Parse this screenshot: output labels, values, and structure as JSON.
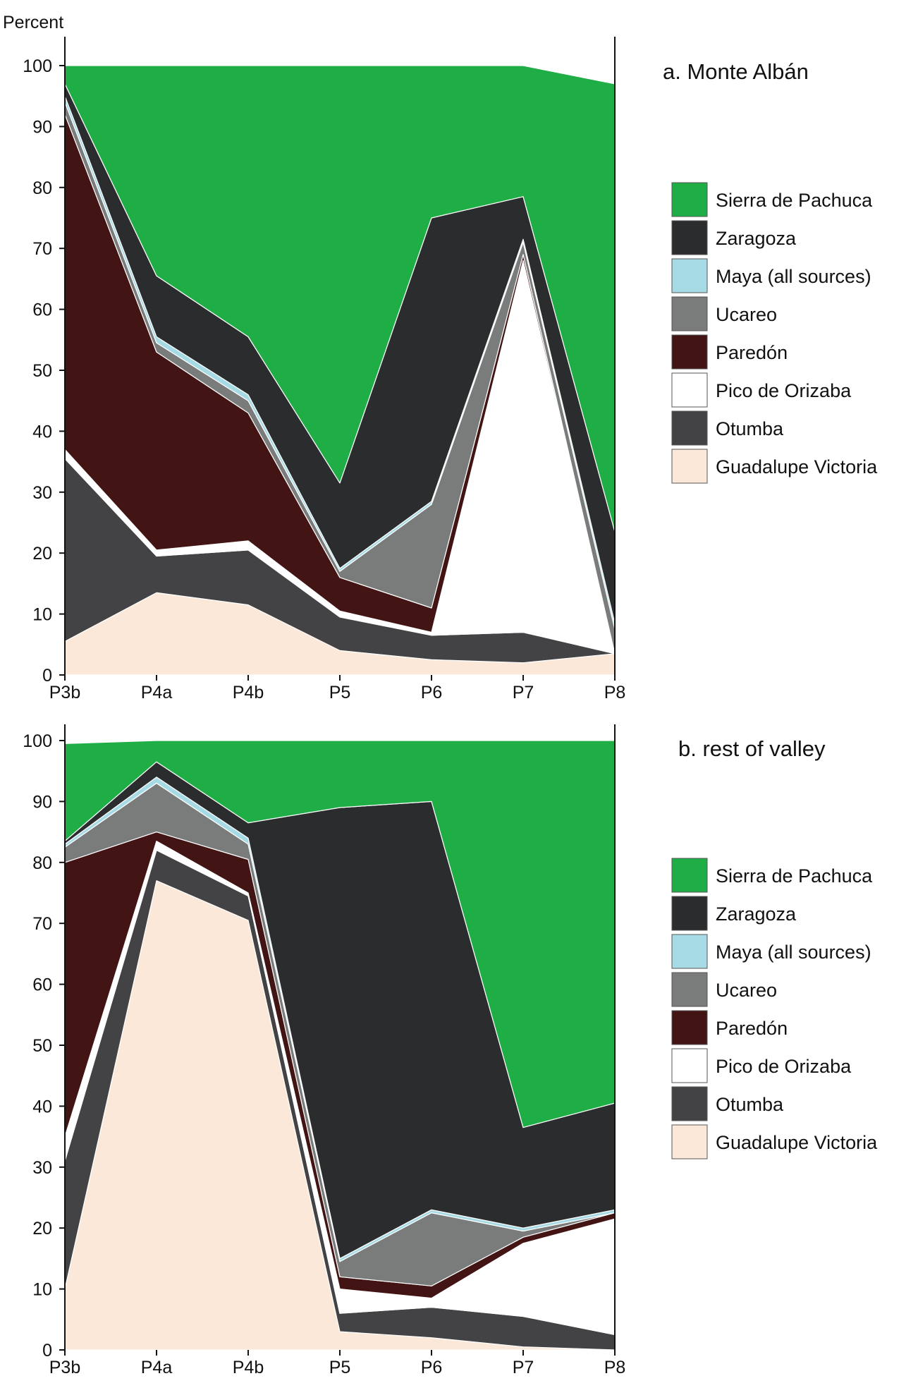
{
  "chart_data": [
    {
      "type": "area",
      "stacked": true,
      "title": "a. Monte Albán",
      "ylabel": "Percent",
      "xlabel": "",
      "ylim": [
        0,
        100
      ],
      "y_ticks": [
        "0",
        "10",
        "20",
        "30",
        "40",
        "50",
        "60",
        "70",
        "80",
        "90",
        "100"
      ],
      "categories": [
        "P3b",
        "P4a",
        "P4b",
        "P5",
        "P6",
        "P7",
        "P8"
      ],
      "series": [
        {
          "name": "Guadalupe Victoria",
          "color": "#fbe8d8",
          "values": [
            5.5,
            13.5,
            11.5,
            4,
            2.5,
            2,
            3.5
          ]
        },
        {
          "name": "Otumba",
          "color": "#434346",
          "values": [
            30,
            6,
            9,
            5.5,
            4,
            5,
            0
          ]
        },
        {
          "name": "Pico de Orizaba",
          "color": "#ffffff",
          "values": [
            1.5,
            1,
            1.5,
            1,
            0.5,
            61,
            0
          ]
        },
        {
          "name": "Paredón",
          "color": "#431414",
          "values": [
            55,
            32.5,
            21,
            5.5,
            4,
            1,
            0
          ]
        },
        {
          "name": "Ucareo",
          "color": "#7a7b7b",
          "values": [
            2,
            1.5,
            2,
            1,
            17,
            2,
            4
          ]
        },
        {
          "name": "Maya (all sources)",
          "color": "#a6dbe6",
          "values": [
            1,
            1,
            1,
            0.5,
            0.5,
            0.5,
            1
          ]
        },
        {
          "name": "Zaragoza",
          "color": "#2b2c2d",
          "values": [
            2,
            10,
            9.5,
            14,
            46.5,
            7,
            15
          ]
        },
        {
          "name": "Sierra de Pachuca",
          "color": "#1fae46",
          "values": [
            3,
            34.5,
            44.5,
            68.5,
            25,
            21.5,
            73.5
          ]
        }
      ],
      "legend": "right"
    },
    {
      "type": "area",
      "stacked": true,
      "title": "b. rest of valley",
      "ylabel": "",
      "xlabel": "",
      "ylim": [
        0,
        100
      ],
      "y_ticks": [
        "0",
        "10",
        "20",
        "30",
        "40",
        "50",
        "60",
        "70",
        "80",
        "90",
        "100"
      ],
      "categories": [
        "P3b",
        "P4a",
        "P4b",
        "P5",
        "P6",
        "P7",
        "P8"
      ],
      "series": [
        {
          "name": "Guadalupe Victoria",
          "color": "#fbe8d8",
          "values": [
            10,
            77,
            70.5,
            3,
            2,
            0.5,
            0
          ]
        },
        {
          "name": "Otumba",
          "color": "#434346",
          "values": [
            21,
            5,
            4,
            3,
            5,
            5,
            2.5
          ]
        },
        {
          "name": "Pico de Orizaba",
          "color": "#ffffff",
          "values": [
            4,
            1.5,
            0.5,
            4,
            1.5,
            12,
            19
          ]
        },
        {
          "name": "Paredón",
          "color": "#431414",
          "values": [
            45,
            1.5,
            5.5,
            2,
            2,
            1,
            1
          ]
        },
        {
          "name": "Ucareo",
          "color": "#7a7b7b",
          "values": [
            2.5,
            8,
            2.5,
            2.5,
            12,
            1,
            0
          ]
        },
        {
          "name": "Maya (all sources)",
          "color": "#a6dbe6",
          "values": [
            0.5,
            1,
            1,
            0.5,
            0.5,
            0.5,
            0.5
          ]
        },
        {
          "name": "Zaragoza",
          "color": "#2b2c2d",
          "values": [
            0.5,
            2.5,
            2.5,
            74,
            67,
            16.5,
            17.5
          ]
        },
        {
          "name": "Sierra de Pachuca",
          "color": "#1fae46",
          "values": [
            16,
            3.5,
            13.5,
            11,
            10,
            63.5,
            59.5
          ]
        }
      ],
      "legend": "right"
    }
  ],
  "legend_order": [
    "Sierra de Pachuca",
    "Zaragoza",
    "Maya (all sources)",
    "Ucareo",
    "Paredón",
    "Pico de Orizaba",
    "Otumba",
    "Guadalupe Victoria"
  ]
}
